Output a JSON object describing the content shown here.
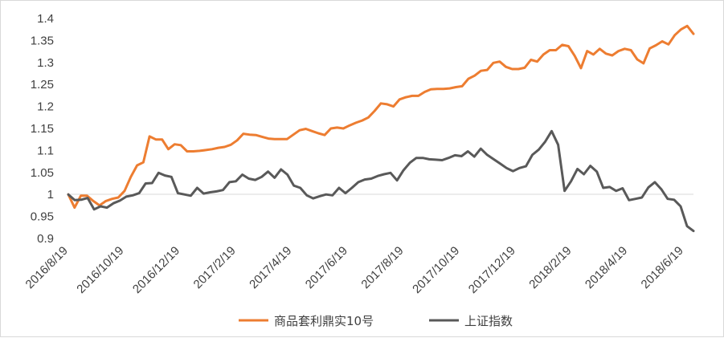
{
  "chart_data": {
    "type": "line",
    "title": "",
    "xlabel": "",
    "ylabel": "",
    "ylim": [
      0.9,
      1.4
    ],
    "y_ticks": [
      "0.9",
      "0.95",
      "1",
      "1.05",
      "1.1",
      "1.15",
      "1.2",
      "1.25",
      "1.3",
      "1.35",
      "1.4"
    ],
    "x_tick_labels": [
      "2016/8/19",
      "2016/10/19",
      "2016/12/19",
      "2017/2/19",
      "2017/4/19",
      "2017/6/19",
      "2017/8/19",
      "2017/10/19",
      "2017/12/19",
      "2018/2/19",
      "2018/4/19",
      "2018/6/19"
    ],
    "grid": false,
    "legend_position": "bottom",
    "series": [
      {
        "name": "商品套利鼎实10号",
        "color": "#ED7D31",
        "values": [
          1.0,
          0.97,
          0.997,
          0.997,
          0.985,
          0.975,
          0.985,
          0.99,
          0.993,
          1.008,
          1.04,
          1.066,
          1.073,
          1.132,
          1.125,
          1.125,
          1.103,
          1.114,
          1.112,
          1.098,
          1.098,
          1.099,
          1.101,
          1.103,
          1.106,
          1.108,
          1.113,
          1.123,
          1.138,
          1.136,
          1.135,
          1.131,
          1.127,
          1.126,
          1.126,
          1.126,
          1.136,
          1.146,
          1.149,
          1.144,
          1.139,
          1.135,
          1.15,
          1.152,
          1.15,
          1.157,
          1.163,
          1.168,
          1.175,
          1.19,
          1.207,
          1.205,
          1.2,
          1.216,
          1.221,
          1.224,
          1.224,
          1.233,
          1.239,
          1.24,
          1.24,
          1.241,
          1.244,
          1.246,
          1.263,
          1.27,
          1.281,
          1.283,
          1.299,
          1.302,
          1.29,
          1.285,
          1.285,
          1.288,
          1.306,
          1.302,
          1.318,
          1.328,
          1.328,
          1.34,
          1.337,
          1.315,
          1.287,
          1.326,
          1.318,
          1.331,
          1.32,
          1.316,
          1.326,
          1.331,
          1.328,
          1.307,
          1.298,
          1.332,
          1.339,
          1.348,
          1.341,
          1.362,
          1.375,
          1.383,
          1.365
        ]
      },
      {
        "name": "上证指数",
        "color": "#595959",
        "values": [
          1.0,
          0.987,
          0.988,
          0.992,
          0.966,
          0.973,
          0.97,
          0.98,
          0.986,
          0.995,
          0.998,
          1.003,
          1.025,
          1.026,
          1.049,
          1.043,
          1.04,
          1.003,
          1.0,
          0.997,
          1.015,
          1.002,
          1.005,
          1.007,
          1.01,
          1.028,
          1.03,
          1.045,
          1.036,
          1.033,
          1.04,
          1.052,
          1.038,
          1.057,
          1.045,
          1.02,
          1.015,
          0.998,
          0.991,
          0.996,
          1.0,
          0.998,
          1.015,
          1.003,
          1.015,
          1.028,
          1.034,
          1.036,
          1.042,
          1.046,
          1.049,
          1.032,
          1.055,
          1.072,
          1.083,
          1.083,
          1.08,
          1.079,
          1.078,
          1.083,
          1.089,
          1.087,
          1.098,
          1.086,
          1.104,
          1.09,
          1.08,
          1.07,
          1.06,
          1.053,
          1.06,
          1.064,
          1.09,
          1.102,
          1.12,
          1.144,
          1.113,
          1.008,
          1.03,
          1.058,
          1.046,
          1.065,
          1.052,
          1.015,
          1.017,
          1.008,
          1.014,
          0.987,
          0.99,
          0.993,
          1.016,
          1.028,
          1.012,
          0.99,
          0.988,
          0.973,
          0.928,
          0.917
        ]
      }
    ]
  }
}
